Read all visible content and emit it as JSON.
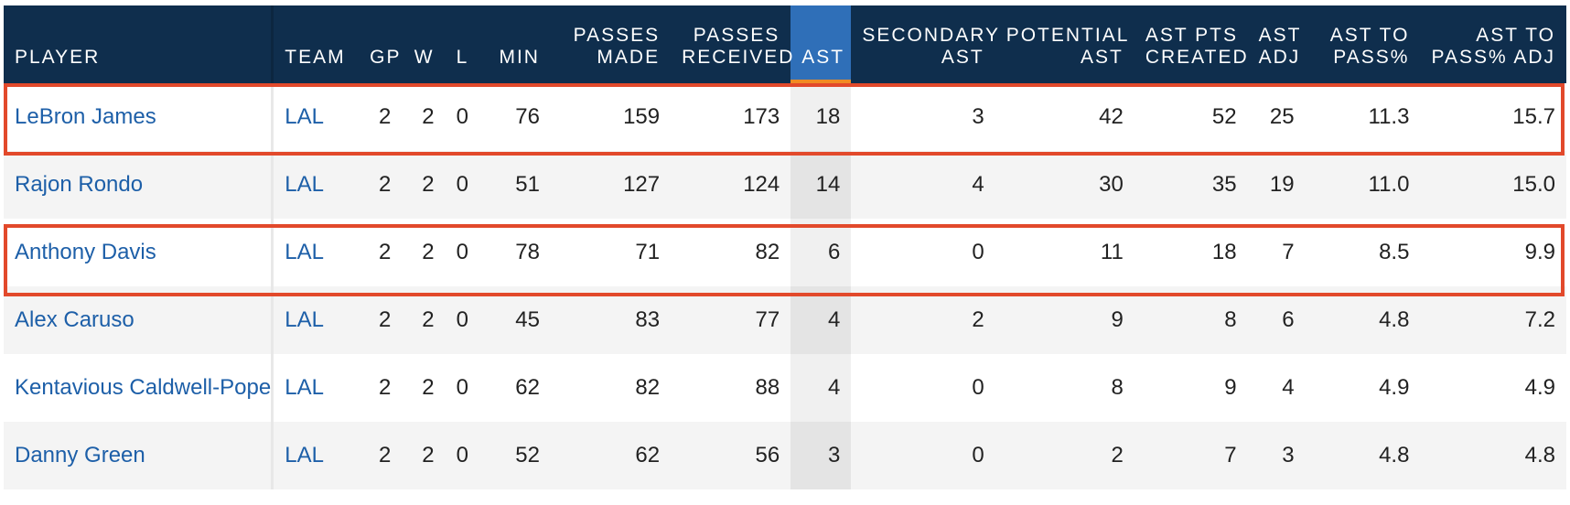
{
  "table": {
    "headers": {
      "player": "PLAYER",
      "team": "TEAM",
      "gp": "GP",
      "w": "W",
      "l": "L",
      "min": "MIN",
      "passes_made_1": "PASSES",
      "passes_made_2": "MADE",
      "passes_received_1": "PASSES",
      "passes_received_2": "RECEIVED",
      "ast": "AST",
      "secondary_ast_1": "SECONDARY",
      "secondary_ast_2": "AST",
      "potential_ast_1": "POTENTIAL",
      "potential_ast_2": "AST",
      "ast_pts_created_1": "AST PTS",
      "ast_pts_created_2": "CREATED",
      "ast_adj_1": "AST",
      "ast_adj_2": "ADJ",
      "ast_to_pass_1": "AST TO",
      "ast_to_pass_2": "PASS%",
      "ast_to_pass_adj_1": "AST TO",
      "ast_to_pass_adj_2": "PASS% ADJ"
    },
    "sorted_column": "AST",
    "rows": [
      {
        "player": "LeBron James",
        "team": "LAL",
        "gp": "2",
        "w": "2",
        "l": "0",
        "min": "76",
        "passes_made": "159",
        "passes_received": "173",
        "ast": "18",
        "secondary_ast": "3",
        "potential_ast": "42",
        "ast_pts_created": "52",
        "ast_adj": "25",
        "ast_to_pass": "11.3",
        "ast_to_pass_adj": "15.7"
      },
      {
        "player": "Rajon Rondo",
        "team": "LAL",
        "gp": "2",
        "w": "2",
        "l": "0",
        "min": "51",
        "passes_made": "127",
        "passes_received": "124",
        "ast": "14",
        "secondary_ast": "4",
        "potential_ast": "30",
        "ast_pts_created": "35",
        "ast_adj": "19",
        "ast_to_pass": "11.0",
        "ast_to_pass_adj": "15.0"
      },
      {
        "player": "Anthony Davis",
        "team": "LAL",
        "gp": "2",
        "w": "2",
        "l": "0",
        "min": "78",
        "passes_made": "71",
        "passes_received": "82",
        "ast": "6",
        "secondary_ast": "0",
        "potential_ast": "11",
        "ast_pts_created": "18",
        "ast_adj": "7",
        "ast_to_pass": "8.5",
        "ast_to_pass_adj": "9.9"
      },
      {
        "player": "Alex Caruso",
        "team": "LAL",
        "gp": "2",
        "w": "2",
        "l": "0",
        "min": "45",
        "passes_made": "83",
        "passes_received": "77",
        "ast": "4",
        "secondary_ast": "2",
        "potential_ast": "9",
        "ast_pts_created": "8",
        "ast_adj": "6",
        "ast_to_pass": "4.8",
        "ast_to_pass_adj": "7.2"
      },
      {
        "player": "Kentavious Caldwell-Pope",
        "team": "LAL",
        "gp": "2",
        "w": "2",
        "l": "0",
        "min": "62",
        "passes_made": "82",
        "passes_received": "88",
        "ast": "4",
        "secondary_ast": "0",
        "potential_ast": "8",
        "ast_pts_created": "9",
        "ast_adj": "4",
        "ast_to_pass": "4.9",
        "ast_to_pass_adj": "4.9"
      },
      {
        "player": "Danny Green",
        "team": "LAL",
        "gp": "2",
        "w": "2",
        "l": "0",
        "min": "52",
        "passes_made": "62",
        "passes_received": "56",
        "ast": "3",
        "secondary_ast": "0",
        "potential_ast": "2",
        "ast_pts_created": "7",
        "ast_adj": "3",
        "ast_to_pass": "4.8",
        "ast_to_pass_adj": "4.8"
      }
    ]
  },
  "colors": {
    "header_bg": "#0f2e4d",
    "sorted_header_bg": "#2f6fb8",
    "sort_indicator": "#f08a24",
    "link": "#1d5fa8",
    "highlight_border": "#e2492b"
  }
}
